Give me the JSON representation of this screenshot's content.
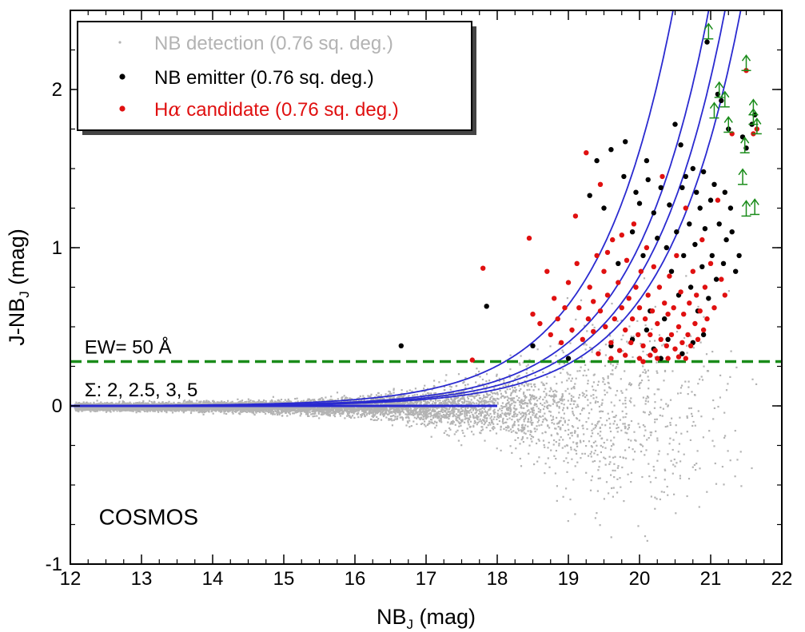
{
  "chart_data": {
    "type": "scatter",
    "title": "",
    "xlabel": "NB",
    "xlabel_sub": "J",
    "xlabel_unit": " (mag)",
    "ylabel": "J-NB",
    "ylabel_sub": "J",
    "ylabel_unit": " (mag)",
    "xlim": [
      12,
      22
    ],
    "ylim": [
      -1,
      2.5
    ],
    "x_ticks": [
      12,
      13,
      14,
      15,
      16,
      17,
      18,
      19,
      20,
      21,
      22
    ],
    "x_tick_labels": [
      "12",
      "13",
      "14",
      "15",
      "16",
      "17",
      "18",
      "19",
      "20",
      "21",
      "22"
    ],
    "y_ticks": [
      -1,
      0,
      1,
      2
    ],
    "y_tick_labels": [
      "-1",
      "0",
      "1",
      "2"
    ],
    "legend": [
      {
        "label": "NB detection (0.76 sq. deg.)",
        "color": "#b3b3b3",
        "marker": "dot-small"
      },
      {
        "label": "NB emitter (0.76 sq. deg.)",
        "color": "#000000",
        "marker": "dot"
      },
      {
        "label_prefix": "H",
        "label_symbol": "α",
        "label": " candidate (0.76 sq. deg.)",
        "color": "#e01010",
        "marker": "dot"
      }
    ],
    "annotations": {
      "ew_line": {
        "text": "EW= 50 Å",
        "y": 0.28,
        "color": "#1a8c1a"
      },
      "sigma_curves": {
        "symbol": "Σ",
        "text": ": 2, 2.5, 3, 5",
        "sigmas": [
          2,
          2.5,
          3,
          5
        ],
        "color": "#2a2ad0"
      },
      "field": {
        "text": "COSMOS"
      }
    },
    "series": [
      {
        "name": "NB emitter",
        "color": "#000000",
        "points": [
          [
            16.65,
            0.38
          ],
          [
            17.85,
            0.63
          ],
          [
            18.5,
            0.38
          ],
          [
            19.0,
            0.3
          ],
          [
            19.3,
            1.33
          ],
          [
            19.4,
            1.55
          ],
          [
            19.5,
            1.25
          ],
          [
            19.6,
            1.62
          ],
          [
            19.7,
            0.9
          ],
          [
            19.78,
            1.45
          ],
          [
            19.8,
            1.67
          ],
          [
            19.9,
            1.1
          ],
          [
            19.95,
            1.35
          ],
          [
            20.0,
            1.28
          ],
          [
            20.05,
            0.95
          ],
          [
            20.1,
            1.55
          ],
          [
            20.12,
            1.43
          ],
          [
            20.15,
            0.6
          ],
          [
            20.2,
            1.22
          ],
          [
            20.25,
            1.06
          ],
          [
            20.3,
            1.38
          ],
          [
            20.35,
            0.55
          ],
          [
            20.38,
            1.0
          ],
          [
            20.42,
            1.27
          ],
          [
            20.45,
            0.85
          ],
          [
            20.5,
            1.78
          ],
          [
            20.52,
            1.1
          ],
          [
            20.55,
            0.7
          ],
          [
            20.58,
            1.65
          ],
          [
            20.6,
            1.38
          ],
          [
            20.62,
            0.95
          ],
          [
            20.65,
            1.45
          ],
          [
            20.7,
            1.15
          ],
          [
            20.72,
            0.75
          ],
          [
            20.75,
            1.5
          ],
          [
            20.78,
            1.02
          ],
          [
            20.8,
            1.35
          ],
          [
            20.82,
            0.6
          ],
          [
            20.85,
            1.25
          ],
          [
            20.88,
            0.88
          ],
          [
            20.9,
            1.48
          ],
          [
            20.92,
            1.12
          ],
          [
            20.95,
            2.3
          ],
          [
            20.97,
            0.68
          ],
          [
            21.0,
            1.3
          ],
          [
            21.02,
            0.95
          ],
          [
            21.05,
            1.4
          ],
          [
            21.08,
            0.8
          ],
          [
            21.1,
            1.97
          ],
          [
            21.12,
            1.15
          ],
          [
            21.15,
            1.93
          ],
          [
            21.18,
            0.9
          ],
          [
            21.2,
            1.35
          ],
          [
            21.22,
            1.05
          ],
          [
            21.25,
            1.75
          ],
          [
            21.28,
            1.25
          ],
          [
            21.3,
            1.1
          ],
          [
            21.35,
            0.85
          ],
          [
            21.4,
            0.95
          ],
          [
            21.45,
            1.7
          ],
          [
            21.5,
            1.63
          ],
          [
            21.58,
            1.78
          ],
          [
            21.62,
            1.84
          ],
          [
            20.3,
            0.3
          ],
          [
            20.4,
            0.42
          ],
          [
            20.1,
            0.48
          ],
          [
            20.6,
            0.33
          ],
          [
            20.75,
            0.4
          ],
          [
            20.9,
            0.45
          ],
          [
            19.9,
            0.42
          ],
          [
            19.6,
            0.38
          ],
          [
            20.2,
            0.36
          ]
        ]
      },
      {
        "name": "Hα candidate",
        "color": "#e01010",
        "points": [
          [
            17.65,
            0.29
          ],
          [
            17.8,
            0.87
          ],
          [
            18.45,
            1.06
          ],
          [
            18.5,
            0.58
          ],
          [
            18.6,
            0.52
          ],
          [
            18.7,
            0.85
          ],
          [
            18.75,
            0.45
          ],
          [
            18.8,
            0.68
          ],
          [
            18.85,
            0.55
          ],
          [
            18.9,
            0.4
          ],
          [
            18.95,
            0.62
          ],
          [
            19.0,
            0.78
          ],
          [
            19.05,
            0.48
          ],
          [
            19.1,
            1.2
          ],
          [
            19.12,
            0.9
          ],
          [
            19.15,
            0.62
          ],
          [
            19.2,
            0.42
          ],
          [
            19.25,
            1.6
          ],
          [
            19.28,
            0.55
          ],
          [
            19.3,
            0.75
          ],
          [
            19.35,
            0.47
          ],
          [
            19.4,
            0.95
          ],
          [
            19.42,
            0.33
          ],
          [
            19.45,
            0.6
          ],
          [
            19.5,
            0.85
          ],
          [
            19.52,
            0.5
          ],
          [
            19.55,
            0.7
          ],
          [
            19.6,
            0.4
          ],
          [
            19.62,
            1.05
          ],
          [
            19.65,
            0.55
          ],
          [
            19.7,
            0.78
          ],
          [
            19.72,
            0.35
          ],
          [
            19.75,
            0.62
          ],
          [
            19.8,
            0.48
          ],
          [
            19.82,
            0.92
          ],
          [
            19.85,
            0.68
          ],
          [
            19.88,
            0.4
          ],
          [
            19.9,
            0.55
          ],
          [
            19.92,
            1.15
          ],
          [
            19.95,
            0.75
          ],
          [
            19.98,
            0.45
          ],
          [
            20.0,
            0.62
          ],
          [
            20.02,
            0.85
          ],
          [
            20.05,
            0.38
          ],
          [
            20.08,
            0.55
          ],
          [
            20.1,
            1.0
          ],
          [
            20.12,
            0.7
          ],
          [
            20.15,
            0.45
          ],
          [
            20.18,
            0.6
          ],
          [
            20.2,
            0.88
          ],
          [
            20.22,
            0.35
          ],
          [
            20.25,
            0.52
          ],
          [
            20.28,
            0.75
          ],
          [
            20.3,
            0.42
          ],
          [
            20.32,
            1.45
          ],
          [
            20.35,
            0.65
          ],
          [
            20.38,
            0.38
          ],
          [
            20.4,
            0.58
          ],
          [
            20.42,
            0.82
          ],
          [
            20.45,
            0.45
          ],
          [
            20.48,
            0.62
          ],
          [
            20.5,
            0.36
          ],
          [
            20.52,
            0.95
          ],
          [
            20.55,
            0.5
          ],
          [
            20.58,
            0.72
          ],
          [
            20.6,
            0.4
          ],
          [
            20.62,
            0.58
          ],
          [
            20.65,
            1.25
          ],
          [
            20.68,
            0.45
          ],
          [
            20.7,
            0.65
          ],
          [
            20.72,
            0.38
          ],
          [
            20.75,
            0.85
          ],
          [
            20.78,
            0.52
          ],
          [
            20.8,
            0.7
          ],
          [
            20.82,
            0.42
          ],
          [
            20.85,
            0.6
          ],
          [
            20.88,
            1.05
          ],
          [
            20.9,
            0.48
          ],
          [
            20.92,
            0.75
          ],
          [
            20.95,
            0.55
          ],
          [
            21.0,
            0.9
          ],
          [
            21.05,
            0.62
          ],
          [
            21.1,
            1.3
          ],
          [
            21.15,
            0.8
          ],
          [
            21.2,
            0.7
          ],
          [
            21.3,
            1.72
          ],
          [
            21.5,
            2.12
          ],
          [
            21.6,
            1.72
          ],
          [
            21.65,
            1.75
          ],
          [
            19.6,
            0.3
          ],
          [
            19.8,
            0.32
          ],
          [
            20.0,
            0.3
          ],
          [
            20.15,
            0.32
          ],
          [
            20.4,
            0.3
          ],
          [
            20.55,
            0.31
          ],
          [
            19.35,
            0.66
          ],
          [
            19.55,
            0.97
          ],
          [
            19.75,
            1.08
          ],
          [
            19.45,
            1.4
          ],
          [
            20.05,
            0.28
          ],
          [
            20.25,
            0.3
          ],
          [
            20.65,
            0.3
          ]
        ]
      },
      {
        "name": "NB detection",
        "color": "#b3b3b3",
        "distribution": "dense cloud around J-NB = 0, widening toward faint NB magnitudes (17-21.7), down to about -0.8 and up to about 0.6"
      }
    ],
    "lower_limit_arrows": [
      [
        20.97,
        2.32
      ],
      [
        21.12,
        1.95
      ],
      [
        21.2,
        1.89
      ],
      [
        21.25,
        1.73
      ],
      [
        21.05,
        1.82
      ],
      [
        21.5,
        2.12
      ],
      [
        21.6,
        1.84
      ],
      [
        21.65,
        1.72
      ],
      [
        21.48,
        1.6
      ],
      [
        21.45,
        1.4
      ],
      [
        21.6,
        1.78
      ],
      [
        21.5,
        1.2
      ],
      [
        21.62,
        1.21
      ]
    ]
  }
}
